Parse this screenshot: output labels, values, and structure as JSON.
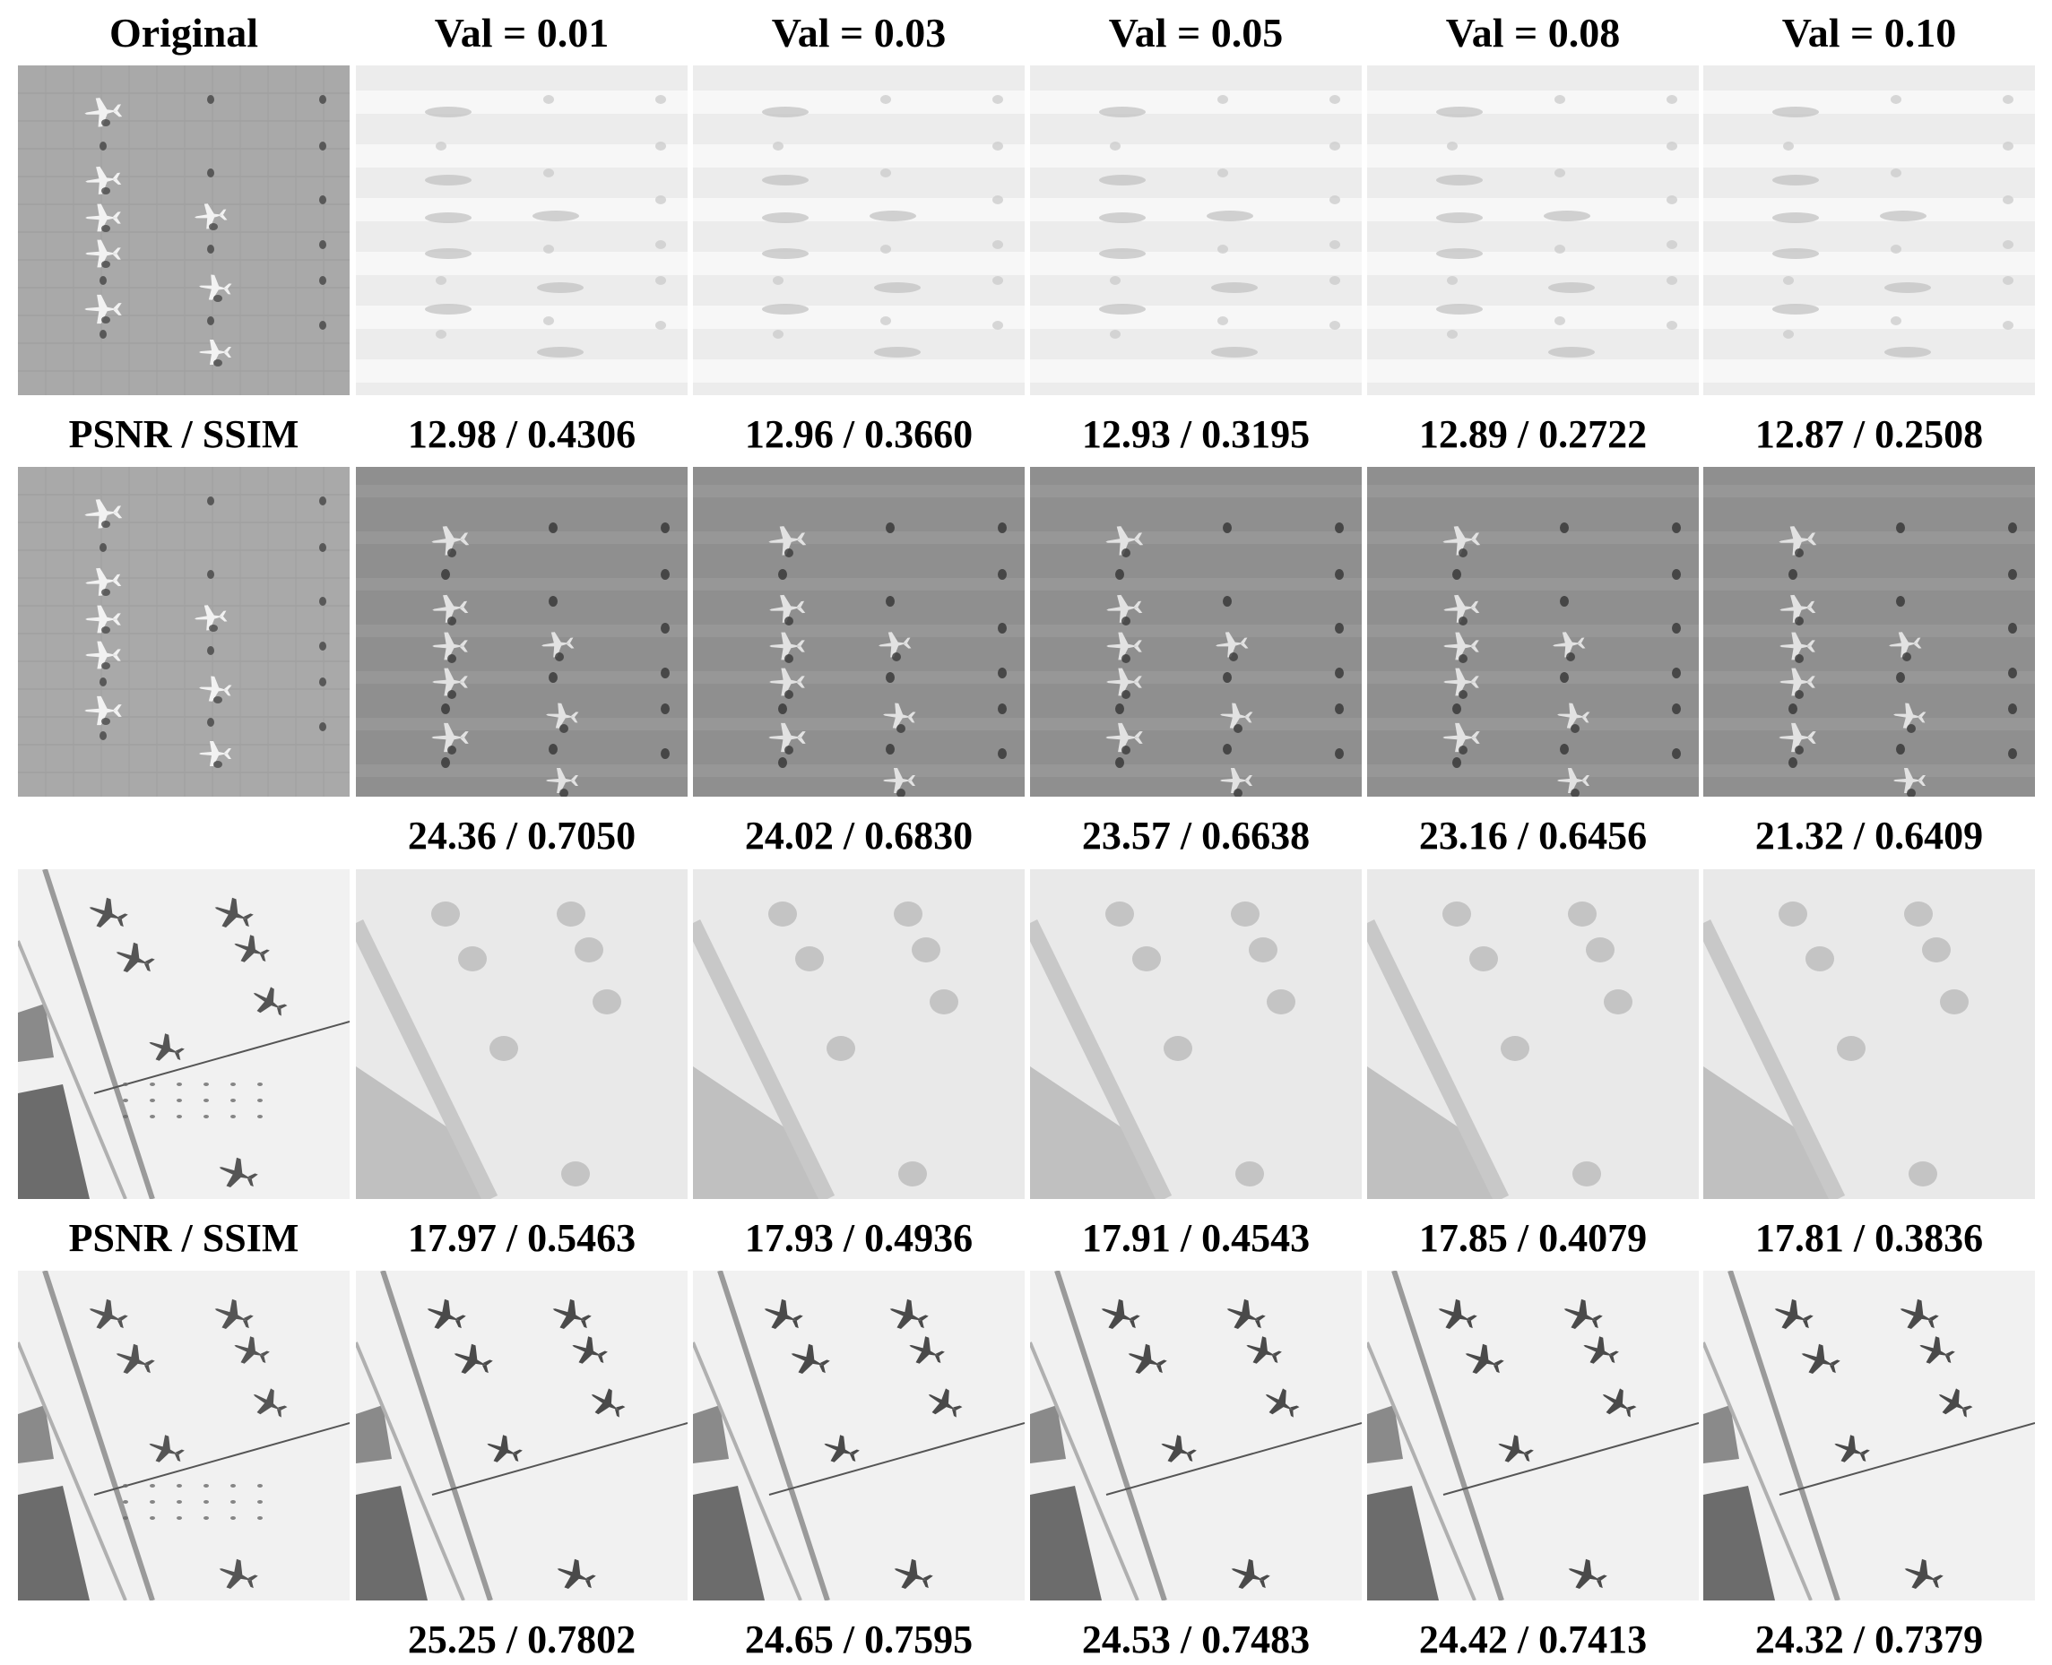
{
  "headers": [
    "Original",
    "Val = 0.01",
    "Val = 0.03",
    "Val = 0.05",
    "Val = 0.08",
    "Val = 0.10"
  ],
  "metric_label": "PSNR / SSIM",
  "rows": [
    {
      "scene": "airfield-grid",
      "kind": "blurred",
      "metrics": [
        "12.98 / 0.4306",
        "12.96 / 0.3660",
        "12.93 / 0.3195",
        "12.89 / 0.2722",
        "12.87 / 0.2508"
      ]
    },
    {
      "scene": "airfield-grid",
      "kind": "restored",
      "metrics": [
        "24.36 / 0.7050",
        "24.02 / 0.6830",
        "23.57 / 0.6638",
        "23.16 / 0.6456",
        "21.32 / 0.6409"
      ]
    },
    {
      "scene": "airfield-diagonal",
      "kind": "blurred",
      "metrics": [
        "17.97 / 0.5463",
        "17.93 / 0.4936",
        "17.91 / 0.4543",
        "17.85 / 0.4079",
        "17.81 / 0.3836"
      ]
    },
    {
      "scene": "airfield-diagonal",
      "kind": "restored",
      "metrics": [
        "25.25 / 0.7802",
        "24.65 / 0.7595",
        "24.53 / 0.7483",
        "24.42 / 0.7413",
        "24.32 / 0.7379"
      ]
    }
  ]
}
